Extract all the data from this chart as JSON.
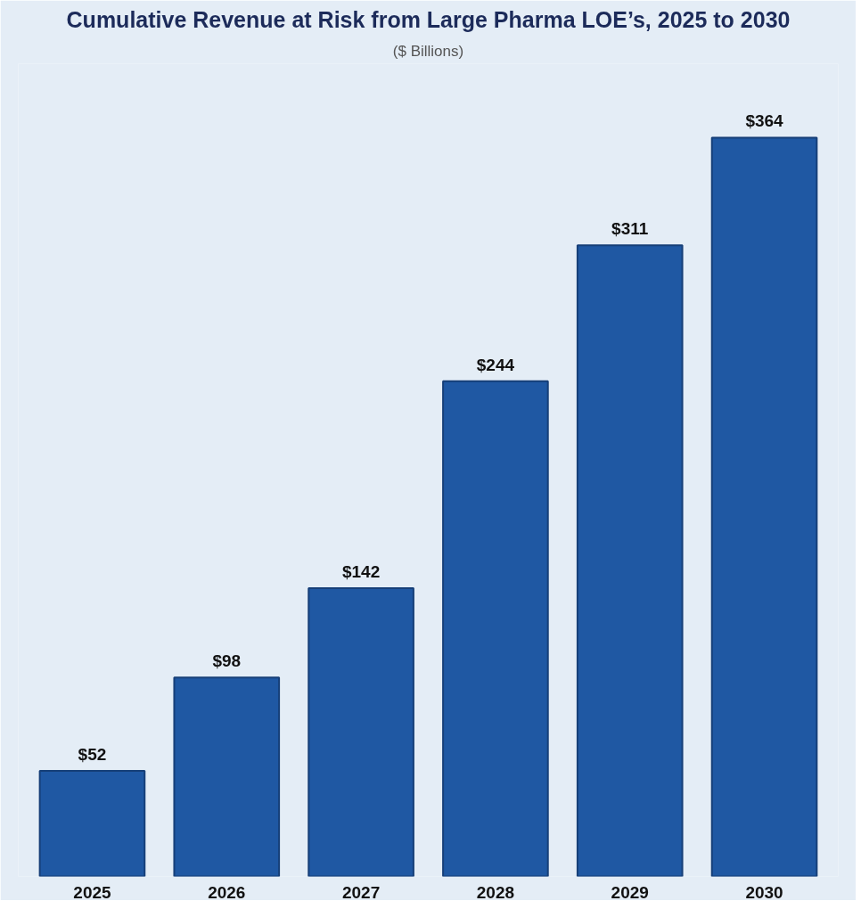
{
  "chart_data": {
    "type": "bar",
    "title": "Cumulative Revenue at Risk from Large Pharma LOE’s, 2025 to 2030",
    "subtitle": "($ Billions)",
    "categories": [
      "2025",
      "2026",
      "2027",
      "2028",
      "2029",
      "2030"
    ],
    "values": [
      52,
      98,
      142,
      244,
      311,
      364
    ],
    "value_labels": [
      "$52",
      "$98",
      "$142",
      "$244",
      "$311",
      "$364"
    ],
    "color": "#1f58a3",
    "grid": false,
    "tick_labels": "x"
  }
}
